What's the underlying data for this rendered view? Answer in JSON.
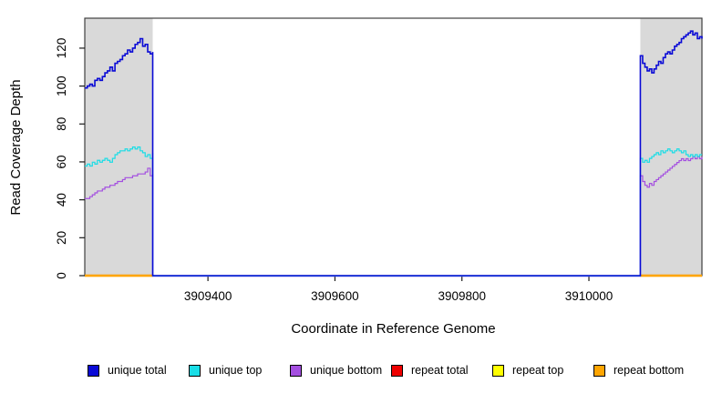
{
  "chart_data": {
    "type": "line",
    "title": "",
    "xlabel": "Coordinate in Reference Genome",
    "ylabel": "Read Coverage Depth",
    "xlim": [
      3909206,
      3910178
    ],
    "ylim": [
      0,
      135.8
    ],
    "xticks": [
      3909400,
      3909600,
      3909800,
      3910000
    ],
    "yticks": [
      0,
      20,
      40,
      60,
      80,
      100,
      120
    ],
    "grid": false,
    "legend_position": "bottom-horizontal",
    "plot_border_color": "#3f3f3f",
    "shaded_region_color": "#D9D9D9",
    "shaded_regions": [
      {
        "x0": 3909206,
        "x1": 3909313
      },
      {
        "x0": 3910081,
        "x1": 3910178
      }
    ],
    "series": [
      {
        "name": "unique total",
        "color": "#0a0ad6",
        "draw_order": 6,
        "stroke_width": 1.6,
        "baseline_offset": 0,
        "connect": "zero",
        "segments": [
          {
            "x0": 3909206,
            "x1": 3909313,
            "values": [
              99,
              100,
              101,
              100,
              103,
              104,
              103,
              105,
              107,
              108,
              110,
              108,
              112,
              113,
              114,
              116,
              117,
              119,
              118,
              120,
              122,
              123,
              125,
              121,
              122,
              118,
              117,
              118
            ]
          },
          {
            "x0": 3910081,
            "x1": 3910178,
            "values": [
              116,
              112,
              110,
              108,
              109,
              107,
              109,
              111,
              113,
              112,
              115,
              117,
              118,
              117,
              119,
              121,
              122,
              123,
              125,
              126,
              127,
              128,
              129,
              127,
              128,
              125,
              126,
              125
            ]
          }
        ]
      },
      {
        "name": "unique top",
        "color": "#19dde6",
        "draw_order": 5,
        "stroke_width": 1.2,
        "baseline_offset": 0.35,
        "connect": "zero",
        "segments": [
          {
            "x0": 3909206,
            "x1": 3909313,
            "values": [
              58,
              59,
              58,
              60,
              59,
              61,
              60,
              61,
              62,
              61,
              60,
              62,
              64,
              65,
              66,
              66,
              67,
              66,
              67,
              68,
              67,
              68,
              66,
              65,
              63,
              64,
              62,
              65
            ]
          },
          {
            "x0": 3910081,
            "x1": 3910178,
            "values": [
              62,
              60,
              61,
              60,
              62,
              63,
              64,
              65,
              64,
              66,
              65,
              66,
              67,
              66,
              65,
              66,
              67,
              66,
              65,
              66,
              64,
              63,
              64,
              63,
              64,
              63,
              64,
              64
            ]
          }
        ]
      },
      {
        "name": "unique bottom",
        "color": "#a44fe0",
        "draw_order": 4,
        "stroke_width": 1.2,
        "baseline_offset": 0.7,
        "connect": "zero",
        "segments": [
          {
            "x0": 3909206,
            "x1": 3909313,
            "values": [
              41,
              41,
              42,
              43,
              44,
              45,
              45,
              46,
              47,
              47,
              48,
              48,
              49,
              50,
              50,
              51,
              52,
              52,
              52,
              53,
              53,
              54,
              54,
              54,
              55,
              57,
              53,
              54
            ]
          },
          {
            "x0": 3910081,
            "x1": 3910178,
            "values": [
              53,
              50,
              48,
              47,
              49,
              48,
              50,
              51,
              52,
              53,
              54,
              55,
              56,
              57,
              58,
              59,
              60,
              61,
              62,
              61,
              62,
              61,
              62,
              63,
              62,
              63,
              62,
              63
            ]
          }
        ]
      },
      {
        "name": "repeat total",
        "color": "#ee0000",
        "draw_order": 1,
        "stroke_width": 2.2,
        "baseline_offset": 0,
        "connect": "none",
        "segments": [
          {
            "x0": 3909206,
            "x1": 3909313,
            "values": [
              0,
              0
            ]
          },
          {
            "x0": 3910081,
            "x1": 3910178,
            "values": [
              0,
              0
            ]
          }
        ]
      },
      {
        "name": "repeat top",
        "color": "#ffff00",
        "draw_order": 2,
        "stroke_width": 2.2,
        "baseline_offset": 0,
        "connect": "none",
        "segments": [
          {
            "x0": 3909206,
            "x1": 3909313,
            "values": [
              0,
              0
            ]
          },
          {
            "x0": 3910081,
            "x1": 3910178,
            "values": [
              0,
              0
            ]
          }
        ]
      },
      {
        "name": "repeat bottom",
        "color": "#ffa500",
        "draw_order": 3,
        "stroke_width": 2.2,
        "baseline_offset": 0,
        "connect": "none",
        "segments": [
          {
            "x0": 3909206,
            "x1": 3909313,
            "values": [
              0,
              0
            ]
          },
          {
            "x0": 3910081,
            "x1": 3910178,
            "values": [
              0,
              0
            ]
          }
        ]
      }
    ]
  }
}
